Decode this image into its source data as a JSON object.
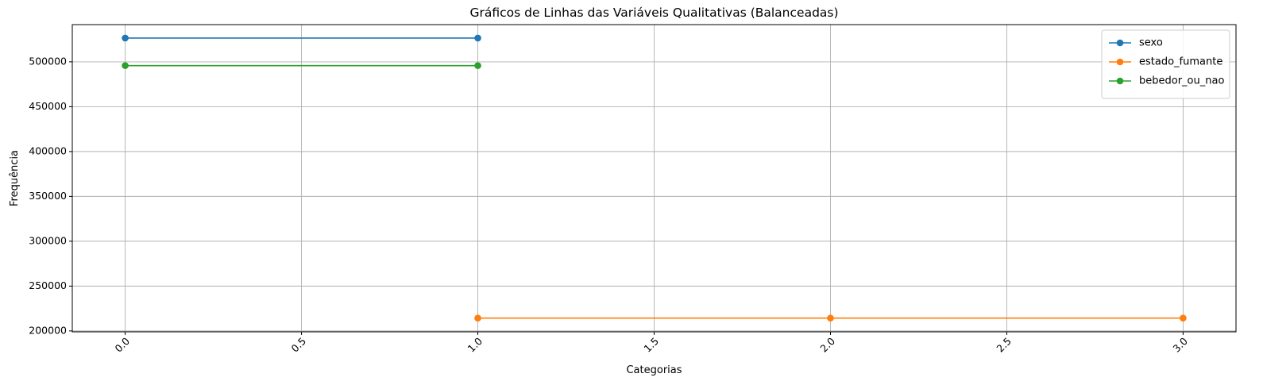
{
  "chart_data": {
    "type": "line",
    "title": "Gráficos de Linhas das Variáveis Qualitativas (Balanceadas)",
    "xlabel": "Categorias",
    "ylabel": "Frequência",
    "xlim": [
      -0.15,
      3.15
    ],
    "ylim": [
      199000,
      541500
    ],
    "x_ticks": [
      0.0,
      0.5,
      1.0,
      1.5,
      2.0,
      2.5,
      3.0
    ],
    "x_tick_labels": [
      "0.0",
      "0.5",
      "1.0",
      "1.5",
      "2.0",
      "2.5",
      "3.0"
    ],
    "y_ticks": [
      200000,
      250000,
      300000,
      350000,
      400000,
      450000,
      500000
    ],
    "y_tick_labels": [
      "200000",
      "250000",
      "300000",
      "350000",
      "400000",
      "450000",
      "500000"
    ],
    "x_tick_rotation": -45,
    "grid": true,
    "legend_position": "top-right",
    "series": [
      {
        "name": "sexo",
        "color": "#1f77b4",
        "x": [
          0,
          1
        ],
        "y": [
          526500,
          526500
        ]
      },
      {
        "name": "estado_fumante",
        "color": "#ff7f0e",
        "x": [
          1,
          2,
          3
        ],
        "y": [
          214300,
          214300,
          214300
        ]
      },
      {
        "name": "bebedor_ou_nao",
        "color": "#2ca02c",
        "x": [
          0,
          1
        ],
        "y": [
          495800,
          495800
        ]
      }
    ]
  }
}
